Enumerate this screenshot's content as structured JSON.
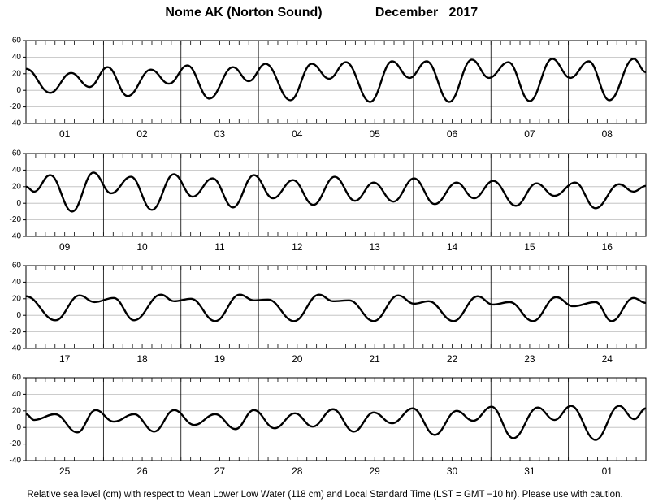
{
  "title": "Nome AK (Norton Sound)",
  "date": "December   2017",
  "note": "Relative sea level (cm) with respect to Mean Lower Low Water (118 cm) and Local Standard Time (LST = GMT −10 hr). Please use with caution.",
  "chart_data": [
    {
      "type": "line",
      "color": "#000000",
      "xlim": [
        0,
        192
      ],
      "ylim": [
        -40,
        60
      ],
      "yticks": [
        -40,
        -20,
        0,
        20,
        40,
        60
      ],
      "categories": [
        "01",
        "02",
        "03",
        "04",
        "05",
        "06",
        "07",
        "08"
      ],
      "x": [
        0,
        7.5,
        14.0,
        19.7,
        25.3,
        31.5,
        38.7,
        44.3,
        50.0,
        56.8,
        64.1,
        69.0,
        74.2,
        81.9,
        88.5,
        93.9,
        99.1,
        106.6,
        113.4,
        118.8,
        124.1,
        131.1,
        138.1,
        143.4,
        149.4,
        156.0,
        163.0,
        168.6,
        174.3,
        180.7,
        188.2,
        192
      ],
      "values": [
        26,
        -3,
        21,
        4,
        28,
        -7,
        25,
        8,
        30,
        -10,
        28,
        11,
        32,
        -12,
        32,
        14,
        34,
        -14,
        35,
        15,
        35,
        -14,
        37,
        15,
        34,
        -13,
        38,
        15,
        35,
        -12,
        38,
        22
      ]
    },
    {
      "type": "line",
      "color": "#000000",
      "xlim": [
        0,
        192
      ],
      "ylim": [
        -40,
        60
      ],
      "yticks": [
        -40,
        -20,
        0,
        20,
        40,
        60
      ],
      "categories": [
        "09",
        "10",
        "11",
        "12",
        "13",
        "14",
        "15",
        "16"
      ],
      "x": [
        0,
        2.5,
        7.5,
        14.3,
        20.9,
        26.4,
        32.5,
        39.0,
        45.8,
        51.6,
        57.8,
        64.1,
        70.6,
        76.5,
        82.7,
        89.0,
        95.6,
        101.9,
        107.7,
        113.8,
        120.2,
        126.6,
        133.4,
        138.8,
        144.7,
        151.7,
        158.1,
        163.7,
        170.1,
        176.4,
        183.7,
        188.2,
        192
      ],
      "values": [
        20,
        14,
        34,
        -10,
        37,
        12,
        32,
        -8,
        35,
        8,
        30,
        -5,
        34,
        6,
        28,
        -2,
        32,
        3,
        25,
        2,
        30,
        -1,
        25,
        6,
        27,
        -3,
        24,
        9,
        25,
        -6,
        23,
        14,
        21
      ]
    },
    {
      "type": "line",
      "color": "#000000",
      "xlim": [
        0,
        192
      ],
      "ylim": [
        -40,
        60
      ],
      "yticks": [
        -40,
        -20,
        0,
        20,
        40,
        60
      ],
      "categories": [
        "17",
        "18",
        "19",
        "20",
        "21",
        "22",
        "23",
        "24"
      ],
      "x": [
        0,
        9.1,
        16.6,
        21.2,
        27.2,
        33.5,
        41.8,
        45.9,
        51.1,
        58.6,
        66.2,
        70.6,
        75.0,
        83.0,
        90.8,
        95.1,
        100.1,
        107.7,
        115.3,
        120.2,
        124.7,
        132.4,
        139.9,
        144.6,
        149.8,
        157.0,
        164.2,
        169.4,
        176.4,
        181.4,
        188.2,
        192
      ],
      "values": [
        23,
        -6,
        24,
        16,
        21,
        -6,
        25,
        17,
        20,
        -7,
        25,
        18,
        19,
        -7,
        25,
        17,
        18,
        -7,
        24,
        14,
        17,
        -7,
        23,
        13,
        16,
        -7,
        22,
        11,
        16,
        -7,
        21,
        15
      ]
    },
    {
      "type": "line",
      "color": "#000000",
      "xlim": [
        0,
        192
      ],
      "ylim": [
        -40,
        60
      ],
      "yticks": [
        -40,
        -20,
        0,
        20,
        40,
        60
      ],
      "categories": [
        "25",
        "26",
        "27",
        "28",
        "29",
        "30",
        "31",
        "01"
      ],
      "x": [
        0,
        2.5,
        9,
        15.9,
        21.6,
        27.2,
        33.5,
        39.7,
        45.9,
        52.1,
        58.6,
        64.9,
        70.6,
        77.0,
        83.3,
        88.8,
        95.1,
        101.5,
        107.7,
        113.4,
        119.8,
        126.6,
        133.4,
        138.5,
        144.2,
        150.9,
        158.5,
        163.7,
        168.8,
        176.4,
        183.7,
        188.4,
        192
      ],
      "values": [
        16,
        9,
        16,
        -6,
        21,
        7,
        16,
        -5,
        21,
        3,
        16,
        -2,
        21,
        -1,
        17,
        1,
        22,
        -5,
        18,
        5,
        23,
        -9,
        20,
        8,
        25,
        -13,
        24,
        9,
        26,
        -15,
        26,
        10,
        23
      ]
    }
  ]
}
